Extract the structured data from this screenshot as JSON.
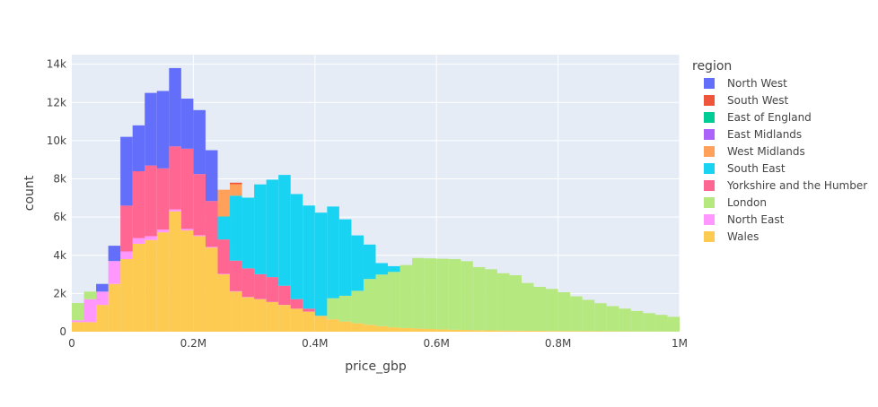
{
  "chart_data": {
    "type": "bar",
    "stacked": true,
    "xlabel": "price_gbp",
    "ylabel": "count",
    "xlim": [
      0,
      1000000
    ],
    "ylim": [
      0,
      14500
    ],
    "bin_width": 20000,
    "x_ticks": [
      {
        "value": 0,
        "label": "0"
      },
      {
        "value": 200000,
        "label": "0.2M"
      },
      {
        "value": 400000,
        "label": "0.4M"
      },
      {
        "value": 600000,
        "label": "0.6M"
      },
      {
        "value": 800000,
        "label": "0.8M"
      },
      {
        "value": 1000000,
        "label": "1M"
      }
    ],
    "y_ticks": [
      {
        "value": 0,
        "label": "0"
      },
      {
        "value": 2000,
        "label": "2k"
      },
      {
        "value": 4000,
        "label": "4k"
      },
      {
        "value": 6000,
        "label": "6k"
      },
      {
        "value": 8000,
        "label": "8k"
      },
      {
        "value": 10000,
        "label": "10k"
      },
      {
        "value": 12000,
        "label": "12k"
      },
      {
        "value": 14000,
        "label": "14k"
      }
    ],
    "grid": true,
    "plot_background": "#e5ecf6",
    "legend": {
      "title": "region",
      "placement": "right"
    },
    "series": [
      {
        "name": "Wales",
        "color": "#FECB52",
        "values": [
          500,
          500,
          1400,
          2500,
          3800,
          4600,
          4800,
          5200,
          6300,
          5300,
          5000,
          4400,
          3000,
          2100,
          1800,
          1700,
          1550,
          1400,
          1200,
          1050,
          830,
          650,
          530,
          440,
          360,
          290,
          230,
          190,
          160,
          140,
          120,
          100,
          90,
          80,
          70,
          60,
          55,
          50,
          45,
          40,
          35,
          30,
          25,
          22,
          20,
          18,
          15,
          13,
          12,
          10
        ]
      },
      {
        "name": "North East",
        "color": "#FF97FF",
        "values": [
          100,
          1200,
          700,
          1200,
          400,
          300,
          200,
          150,
          100,
          80,
          50,
          40,
          30,
          20,
          15,
          10,
          8,
          6,
          5,
          4,
          3,
          2,
          2,
          1,
          1,
          1,
          0,
          0,
          0,
          0,
          0,
          0,
          0,
          0,
          0,
          0,
          0,
          0,
          0,
          0,
          0,
          0,
          0,
          0,
          0,
          0,
          0,
          0,
          0,
          0
        ]
      },
      {
        "name": "London",
        "color": "#B6E880",
        "values": [
          900,
          400,
          0,
          0,
          0,
          0,
          0,
          0,
          0,
          0,
          0,
          0,
          0,
          0,
          0,
          0,
          0,
          0,
          0,
          0,
          0,
          1100,
          1350,
          1700,
          2400,
          2700,
          2900,
          3300,
          3700,
          3700,
          3700,
          3700,
          3600,
          3300,
          3200,
          3000,
          2900,
          2500,
          2300,
          2200,
          2030,
          1820,
          1640,
          1470,
          1320,
          1190,
          1070,
          960,
          870,
          770
        ]
      },
      {
        "name": "Yorkshire and the Humber",
        "color": "#FF6692",
        "values": [
          0,
          0,
          0,
          0,
          2400,
          3500,
          3700,
          3200,
          3300,
          4200,
          3200,
          2400,
          1800,
          1600,
          1500,
          1300,
          1300,
          1000,
          500,
          150,
          0,
          0,
          0,
          0,
          0,
          0,
          0,
          0,
          0,
          0,
          0,
          0,
          0,
          0,
          0,
          0,
          0,
          0,
          0,
          0,
          0,
          0,
          0,
          0,
          0,
          0,
          0,
          0,
          0,
          0
        ]
      },
      {
        "name": "South East",
        "color": "#19D3F3",
        "values": [
          0,
          0,
          0,
          0,
          0,
          0,
          0,
          0,
          0,
          0,
          0,
          0,
          1200,
          3400,
          3700,
          4700,
          5100,
          5800,
          5500,
          5400,
          5400,
          4800,
          4000,
          2900,
          1800,
          600,
          300,
          0,
          0,
          0,
          0,
          0,
          0,
          0,
          0,
          0,
          0,
          0,
          0,
          0,
          0,
          0,
          0,
          0,
          0,
          0,
          0,
          0,
          0,
          0
        ]
      },
      {
        "name": "West Midlands",
        "color": "#FFA15A",
        "values": [
          0,
          0,
          0,
          0,
          0,
          0,
          0,
          0,
          0,
          0,
          0,
          0,
          1400,
          600,
          0,
          0,
          0,
          0,
          0,
          0,
          0,
          0,
          0,
          0,
          0,
          0,
          0,
          0,
          0,
          0,
          0,
          0,
          0,
          0,
          0,
          0,
          0,
          0,
          0,
          0,
          0,
          0,
          0,
          0,
          0,
          0,
          0,
          0,
          0,
          0
        ]
      },
      {
        "name": "East Midlands",
        "color": "#AB63FA",
        "values": [
          0,
          0,
          0,
          0,
          0,
          0,
          0,
          0,
          0,
          0,
          0,
          0,
          0,
          0,
          0,
          0,
          0,
          0,
          0,
          0,
          0,
          0,
          0,
          0,
          0,
          0,
          0,
          0,
          0,
          0,
          0,
          0,
          0,
          0,
          0,
          0,
          0,
          0,
          0,
          0,
          0,
          0,
          0,
          0,
          0,
          0,
          0,
          0,
          0,
          0
        ]
      },
      {
        "name": "East of England",
        "color": "#00CC96",
        "values": [
          0,
          0,
          0,
          0,
          0,
          0,
          0,
          0,
          0,
          0,
          0,
          0,
          0,
          0,
          0,
          0,
          0,
          0,
          0,
          0,
          0,
          0,
          0,
          0,
          0,
          0,
          0,
          0,
          0,
          0,
          0,
          0,
          0,
          0,
          0,
          0,
          0,
          0,
          0,
          0,
          0,
          0,
          0,
          0,
          0,
          0,
          0,
          0,
          0,
          0
        ]
      },
      {
        "name": "South West",
        "color": "#EF553B",
        "values": [
          0,
          0,
          0,
          0,
          0,
          0,
          0,
          0,
          0,
          0,
          0,
          0,
          0,
          0,
          0,
          0,
          0,
          0,
          0,
          0,
          0,
          0,
          0,
          0,
          0,
          0,
          0,
          0,
          0,
          0,
          0,
          0,
          0,
          0,
          0,
          0,
          0,
          0,
          0,
          0,
          0,
          0,
          0,
          0,
          0,
          0,
          0,
          0,
          0,
          0
        ]
      },
      {
        "name": "North West",
        "color": "#636EFA",
        "values": [
          0,
          0,
          0,
          0,
          0,
          0,
          0,
          0,
          0,
          0,
          0,
          0,
          0,
          0,
          0,
          0,
          0,
          0,
          0,
          0,
          0,
          0,
          0,
          0,
          0,
          0,
          0,
          0,
          0,
          0,
          0,
          0,
          0,
          0,
          0,
          0,
          0,
          0,
          0,
          0,
          0,
          0,
          0,
          0,
          0,
          0,
          0,
          0,
          0,
          0
        ]
      }
    ],
    "overlays": [
      {
        "series": "North West",
        "color": "#636EFA",
        "values": [
          1450,
          1200,
          2500,
          4500,
          10200,
          10800,
          12500,
          12600,
          13800,
          12200,
          11600,
          9500,
          0,
          0,
          0,
          0,
          0,
          0,
          0,
          0,
          0,
          0,
          0,
          0,
          0,
          0,
          0,
          0,
          0,
          0,
          0,
          0,
          0,
          0,
          0,
          0,
          0,
          0,
          0,
          0,
          0,
          0,
          0,
          0,
          0,
          0,
          0,
          0,
          0,
          0
        ]
      },
      {
        "series": "South West",
        "color": "#EF553B",
        "values": [
          0,
          0,
          0,
          0,
          0,
          0,
          0,
          0,
          0,
          0,
          0,
          0,
          0,
          7800,
          0,
          0,
          0,
          0,
          0,
          0,
          0,
          0,
          0,
          0,
          0,
          0,
          0,
          0,
          0,
          0,
          0,
          0,
          0,
          0,
          0,
          0,
          0,
          0,
          0,
          0,
          0,
          0,
          0,
          0,
          0,
          0,
          0,
          0,
          0,
          0
        ]
      }
    ],
    "legend_order": [
      "North West",
      "South West",
      "East of England",
      "East Midlands",
      "West Midlands",
      "South East",
      "Yorkshire and the Humber",
      "London",
      "North East",
      "Wales"
    ]
  }
}
